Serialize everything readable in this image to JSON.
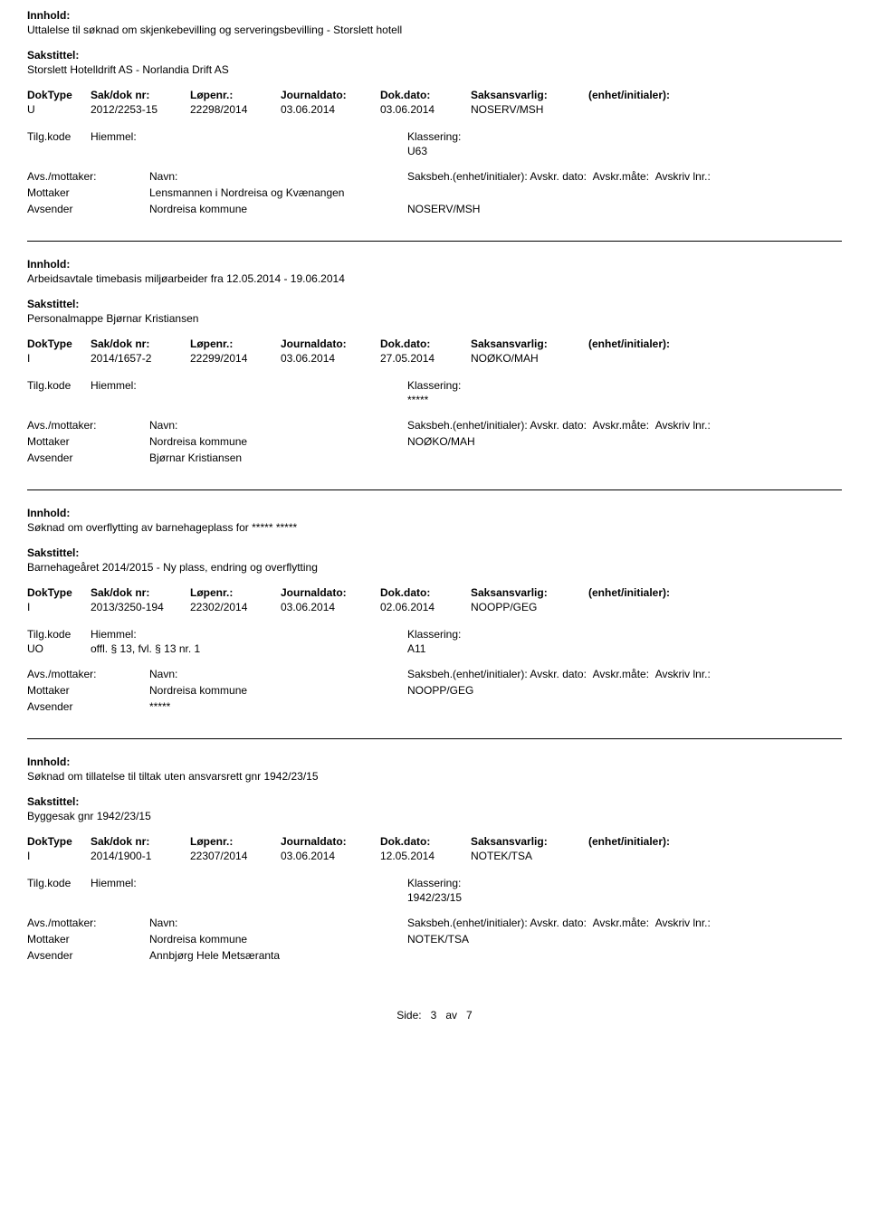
{
  "labels": {
    "innhold": "Innhold:",
    "sakstittel": "Sakstittel:",
    "doktype": "DokType",
    "sakdok": "Sak/dok nr:",
    "lopenr": "Løpenr.:",
    "journaldato": "Journaldato:",
    "dokdato": "Dok.dato:",
    "saksansvarlig": "Saksansvarlig:",
    "enhet": "(enhet/initialer):",
    "tilgkode": "Tilg.kode",
    "hjemmel": "Hiemmel:",
    "klassering": "Klassering:",
    "avs": "Avs./mottaker:",
    "navn": "Navn:",
    "saksbeh": "Saksbeh.(enhet/initialer):",
    "avskrdato": "Avskr. dato:",
    "avskrmate": "Avskr.måte:",
    "avskrivlnr": "Avskriv lnr.:",
    "mottaker": "Mottaker",
    "avsender": "Avsender"
  },
  "footer": {
    "side": "Side:",
    "page": "3",
    "av": "av",
    "total": "7"
  },
  "entries": [
    {
      "innhold": "Uttalelse til søknad om skjenkebevilling og serveringsbevilling - Storslett hotell",
      "sakstittel": "Storslett Hotelldrift AS - Norlandia Drift AS",
      "doktype": "U",
      "sakdok": "2012/2253-15",
      "lopenr": "22298/2014",
      "journaldato": "03.06.2014",
      "dokdato": "03.06.2014",
      "saksansvarlig": "NOSERV/MSH",
      "enhet": "",
      "tilgkode": "",
      "hjemmel": "",
      "klassering": "U63",
      "recipients": [
        {
          "role": "Mottaker",
          "navn": "Lensmannen i Nordreisa og Kvænangen",
          "saksbeh": ""
        },
        {
          "role": "Avsender",
          "navn": "Nordreisa kommune",
          "saksbeh": "NOSERV/MSH"
        }
      ]
    },
    {
      "innhold": "Arbeidsavtale timebasis miljøarbeider fra 12.05.2014 - 19.06.2014",
      "sakstittel": "Personalmappe Bjørnar Kristiansen",
      "doktype": "I",
      "sakdok": "2014/1657-2",
      "lopenr": "22299/2014",
      "journaldato": "03.06.2014",
      "dokdato": "27.05.2014",
      "saksansvarlig": "NOØKO/MAH",
      "enhet": "",
      "tilgkode": "",
      "hjemmel": "",
      "klassering": "*****",
      "recipients": [
        {
          "role": "Mottaker",
          "navn": "Nordreisa kommune",
          "saksbeh": "NOØKO/MAH"
        },
        {
          "role": "Avsender",
          "navn": "Bjørnar Kristiansen",
          "saksbeh": ""
        }
      ]
    },
    {
      "innhold": "Søknad om overflytting av barnehageplass for ***** *****",
      "sakstittel": "Barnehageåret 2014/2015 - Ny plass, endring og overflytting",
      "doktype": "I",
      "sakdok": "2013/3250-194",
      "lopenr": "22302/2014",
      "journaldato": "03.06.2014",
      "dokdato": "02.06.2014",
      "saksansvarlig": "NOOPP/GEG",
      "enhet": "",
      "tilgkode": "UO",
      "hjemmel": "offl. § 13, fvl. § 13 nr. 1",
      "klassering": "A11",
      "recipients": [
        {
          "role": "Mottaker",
          "navn": "Nordreisa kommune",
          "saksbeh": "NOOPP/GEG"
        },
        {
          "role": "Avsender",
          "navn": "*****",
          "saksbeh": ""
        }
      ]
    },
    {
      "innhold": "Søknad om tillatelse til tiltak uten ansvarsrett gnr 1942/23/15",
      "sakstittel": "Byggesak gnr 1942/23/15",
      "doktype": "I",
      "sakdok": "2014/1900-1",
      "lopenr": "22307/2014",
      "journaldato": "03.06.2014",
      "dokdato": "12.05.2014",
      "saksansvarlig": "NOTEK/TSA",
      "enhet": "",
      "tilgkode": "",
      "hjemmel": "",
      "klassering": "1942/23/15",
      "recipients": [
        {
          "role": "Mottaker",
          "navn": "Nordreisa kommune",
          "saksbeh": "NOTEK/TSA"
        },
        {
          "role": "Avsender",
          "navn": "Annbjørg Hele Metsæranta",
          "saksbeh": ""
        }
      ]
    }
  ]
}
